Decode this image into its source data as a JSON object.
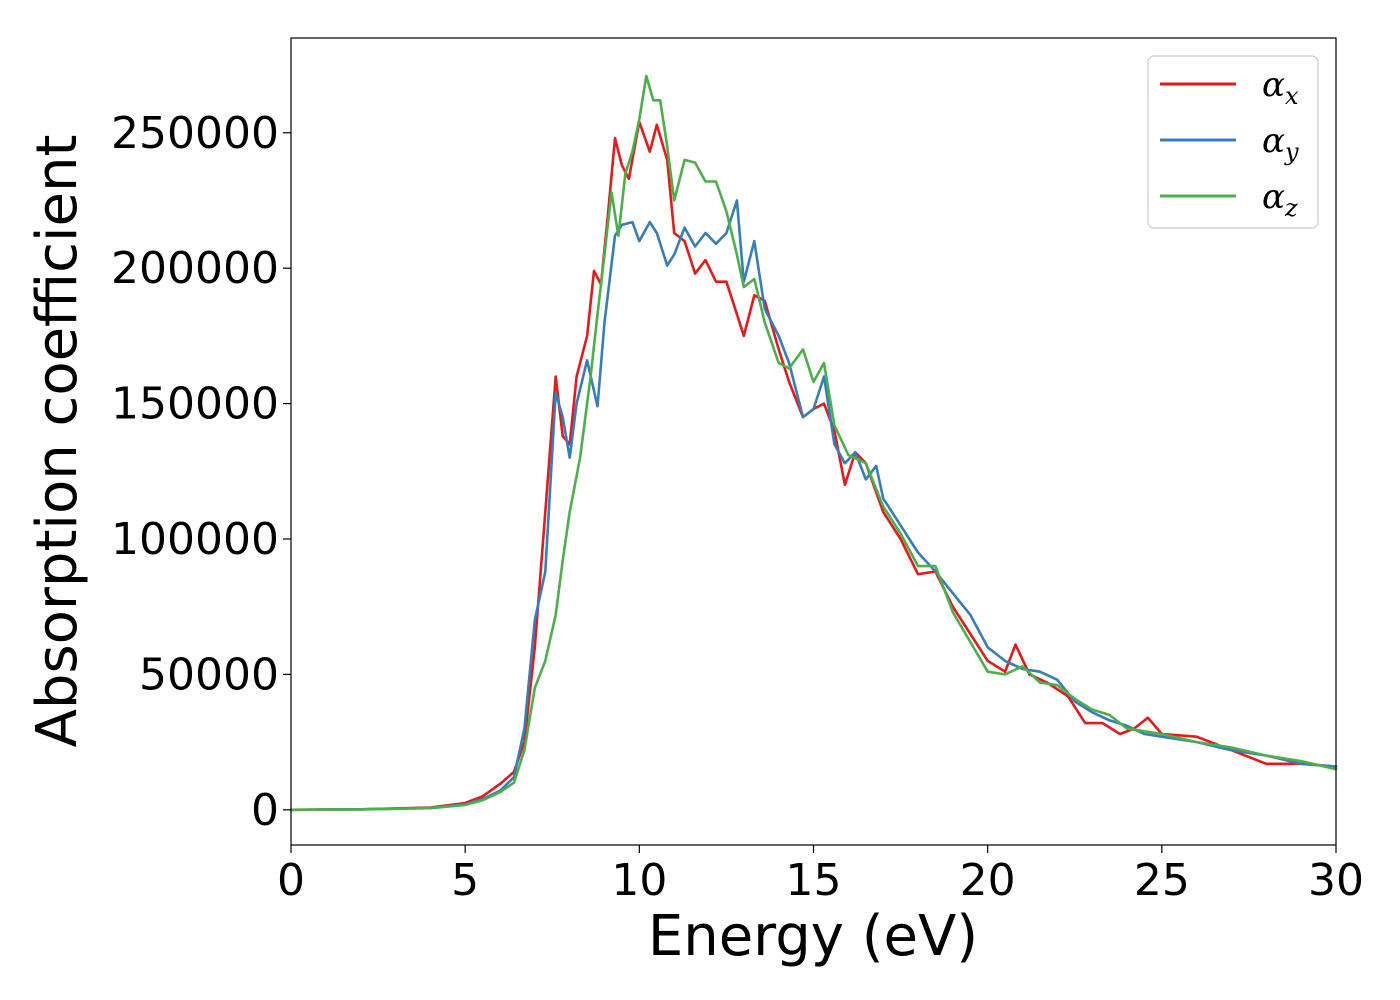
{
  "chart_data": {
    "type": "line",
    "title": "",
    "xlabel": "Energy (eV)",
    "ylabel": "Absorption coefficient",
    "xlim": [
      0,
      30
    ],
    "ylim": [
      -13000,
      285000
    ],
    "xticks": [
      0,
      5,
      10,
      15,
      20,
      25,
      30
    ],
    "xtick_labels": [
      "0",
      "5",
      "10",
      "15",
      "20",
      "25",
      "30"
    ],
    "yticks": [
      0,
      50000,
      100000,
      150000,
      200000,
      250000
    ],
    "ytick_labels": [
      "0",
      "50000",
      "100000",
      "150000",
      "200000",
      "250000"
    ],
    "grid": false,
    "legend": {
      "position": "top-right"
    },
    "series": [
      {
        "name": "αx",
        "symbol": "α",
        "subscript": "x",
        "color": "#e41a1c",
        "x": [
          0,
          2,
          4,
          5,
          5.5,
          6,
          6.4,
          6.7,
          7.0,
          7.3,
          7.6,
          7.8,
          8.0,
          8.2,
          8.5,
          8.7,
          8.9,
          9.1,
          9.3,
          9.5,
          9.7,
          10.0,
          10.3,
          10.5,
          10.8,
          11.0,
          11.3,
          11.6,
          11.9,
          12.2,
          12.5,
          12.8,
          13.0,
          13.3,
          13.6,
          14.0,
          14.3,
          14.7,
          15.0,
          15.3,
          15.6,
          15.9,
          16.2,
          16.5,
          17.0,
          17.5,
          18.0,
          18.5,
          19.0,
          19.5,
          20.0,
          20.5,
          20.8,
          21.2,
          21.7,
          22.3,
          22.8,
          23.3,
          23.8,
          24.2,
          24.6,
          25.0,
          26.0,
          27.0,
          28.0,
          29.0,
          30.0
        ],
        "y": [
          0,
          200,
          800,
          2500,
          5000,
          9500,
          14000,
          25000,
          60000,
          110000,
          160000,
          138000,
          135000,
          160000,
          175000,
          199000,
          194000,
          220000,
          248000,
          238000,
          233000,
          254000,
          243000,
          253000,
          240000,
          213000,
          210000,
          198000,
          203000,
          195000,
          195000,
          183000,
          175000,
          190000,
          188000,
          170000,
          158000,
          145000,
          148000,
          150000,
          140000,
          120000,
          132000,
          128000,
          110000,
          100000,
          87000,
          88000,
          75000,
          65000,
          55000,
          51000,
          61000,
          50000,
          47000,
          42000,
          32000,
          32000,
          28000,
          30000,
          34000,
          28000,
          27000,
          22000,
          17000,
          17000,
          16000
        ]
      },
      {
        "name": "αy",
        "symbol": "α",
        "subscript": "y",
        "color": "#377eb8",
        "x": [
          0,
          2,
          4,
          5,
          5.5,
          6,
          6.4,
          6.7,
          7.0,
          7.3,
          7.6,
          7.8,
          8.0,
          8.2,
          8.5,
          8.8,
          9.0,
          9.3,
          9.5,
          9.8,
          10.0,
          10.3,
          10.5,
          10.8,
          11.0,
          11.3,
          11.6,
          11.9,
          12.2,
          12.5,
          12.8,
          13.0,
          13.3,
          13.6,
          14.0,
          14.3,
          14.7,
          15.0,
          15.3,
          15.6,
          15.9,
          16.2,
          16.5,
          16.8,
          17.0,
          17.5,
          18.0,
          18.5,
          19.0,
          19.5,
          20.0,
          20.5,
          21.0,
          21.5,
          22.0,
          22.5,
          23.0,
          23.5,
          24.0,
          24.5,
          25.0,
          26.0,
          27.0,
          28.0,
          29.0,
          30.0
        ],
        "y": [
          0,
          200,
          700,
          2000,
          4000,
          7000,
          12000,
          30000,
          70000,
          88000,
          154000,
          145000,
          130000,
          150000,
          166000,
          149000,
          180000,
          212000,
          216000,
          217000,
          210000,
          217000,
          213000,
          201000,
          205000,
          215000,
          208000,
          213000,
          209000,
          213000,
          225000,
          195000,
          210000,
          185000,
          175000,
          165000,
          145000,
          148000,
          160000,
          135000,
          128000,
          132000,
          122000,
          127000,
          115000,
          105000,
          95000,
          88000,
          80000,
          72000,
          60000,
          55000,
          52000,
          51000,
          48000,
          40000,
          36000,
          33000,
          31000,
          28000,
          27000,
          25000,
          22000,
          20000,
          17000,
          16000
        ]
      },
      {
        "name": "αz",
        "symbol": "α",
        "subscript": "z",
        "color": "#4daf4a",
        "x": [
          0,
          2,
          4,
          5,
          5.5,
          6,
          6.4,
          6.7,
          7.0,
          7.3,
          7.6,
          7.8,
          8.0,
          8.3,
          8.6,
          8.8,
          9.0,
          9.2,
          9.4,
          9.6,
          9.8,
          10.0,
          10.2,
          10.4,
          10.6,
          10.8,
          11.0,
          11.3,
          11.6,
          11.9,
          12.2,
          12.5,
          12.8,
          13.0,
          13.3,
          13.6,
          14.0,
          14.3,
          14.7,
          15.0,
          15.3,
          15.6,
          16.0,
          16.5,
          17.0,
          17.5,
          18.0,
          18.5,
          19.0,
          19.5,
          20.0,
          20.5,
          21.0,
          21.5,
          22.0,
          22.5,
          23.0,
          23.5,
          24.0,
          24.5,
          25.0,
          26.0,
          27.0,
          28.0,
          29.0,
          30.0
        ],
        "y": [
          0,
          150,
          600,
          1800,
          3500,
          6500,
          10000,
          22000,
          45000,
          55000,
          72000,
          92000,
          110000,
          130000,
          160000,
          183000,
          205000,
          228000,
          212000,
          235000,
          243000,
          255000,
          271000,
          262000,
          262000,
          245000,
          225000,
          240000,
          239000,
          232000,
          232000,
          221000,
          205000,
          193000,
          196000,
          180000,
          165000,
          163000,
          170000,
          158000,
          165000,
          142000,
          131000,
          128000,
          112000,
          102000,
          90000,
          90000,
          73000,
          62000,
          51000,
          50000,
          53000,
          47000,
          46000,
          41000,
          37000,
          35000,
          30000,
          29000,
          28000,
          25000,
          23000,
          20000,
          18000,
          15000
        ]
      }
    ]
  }
}
